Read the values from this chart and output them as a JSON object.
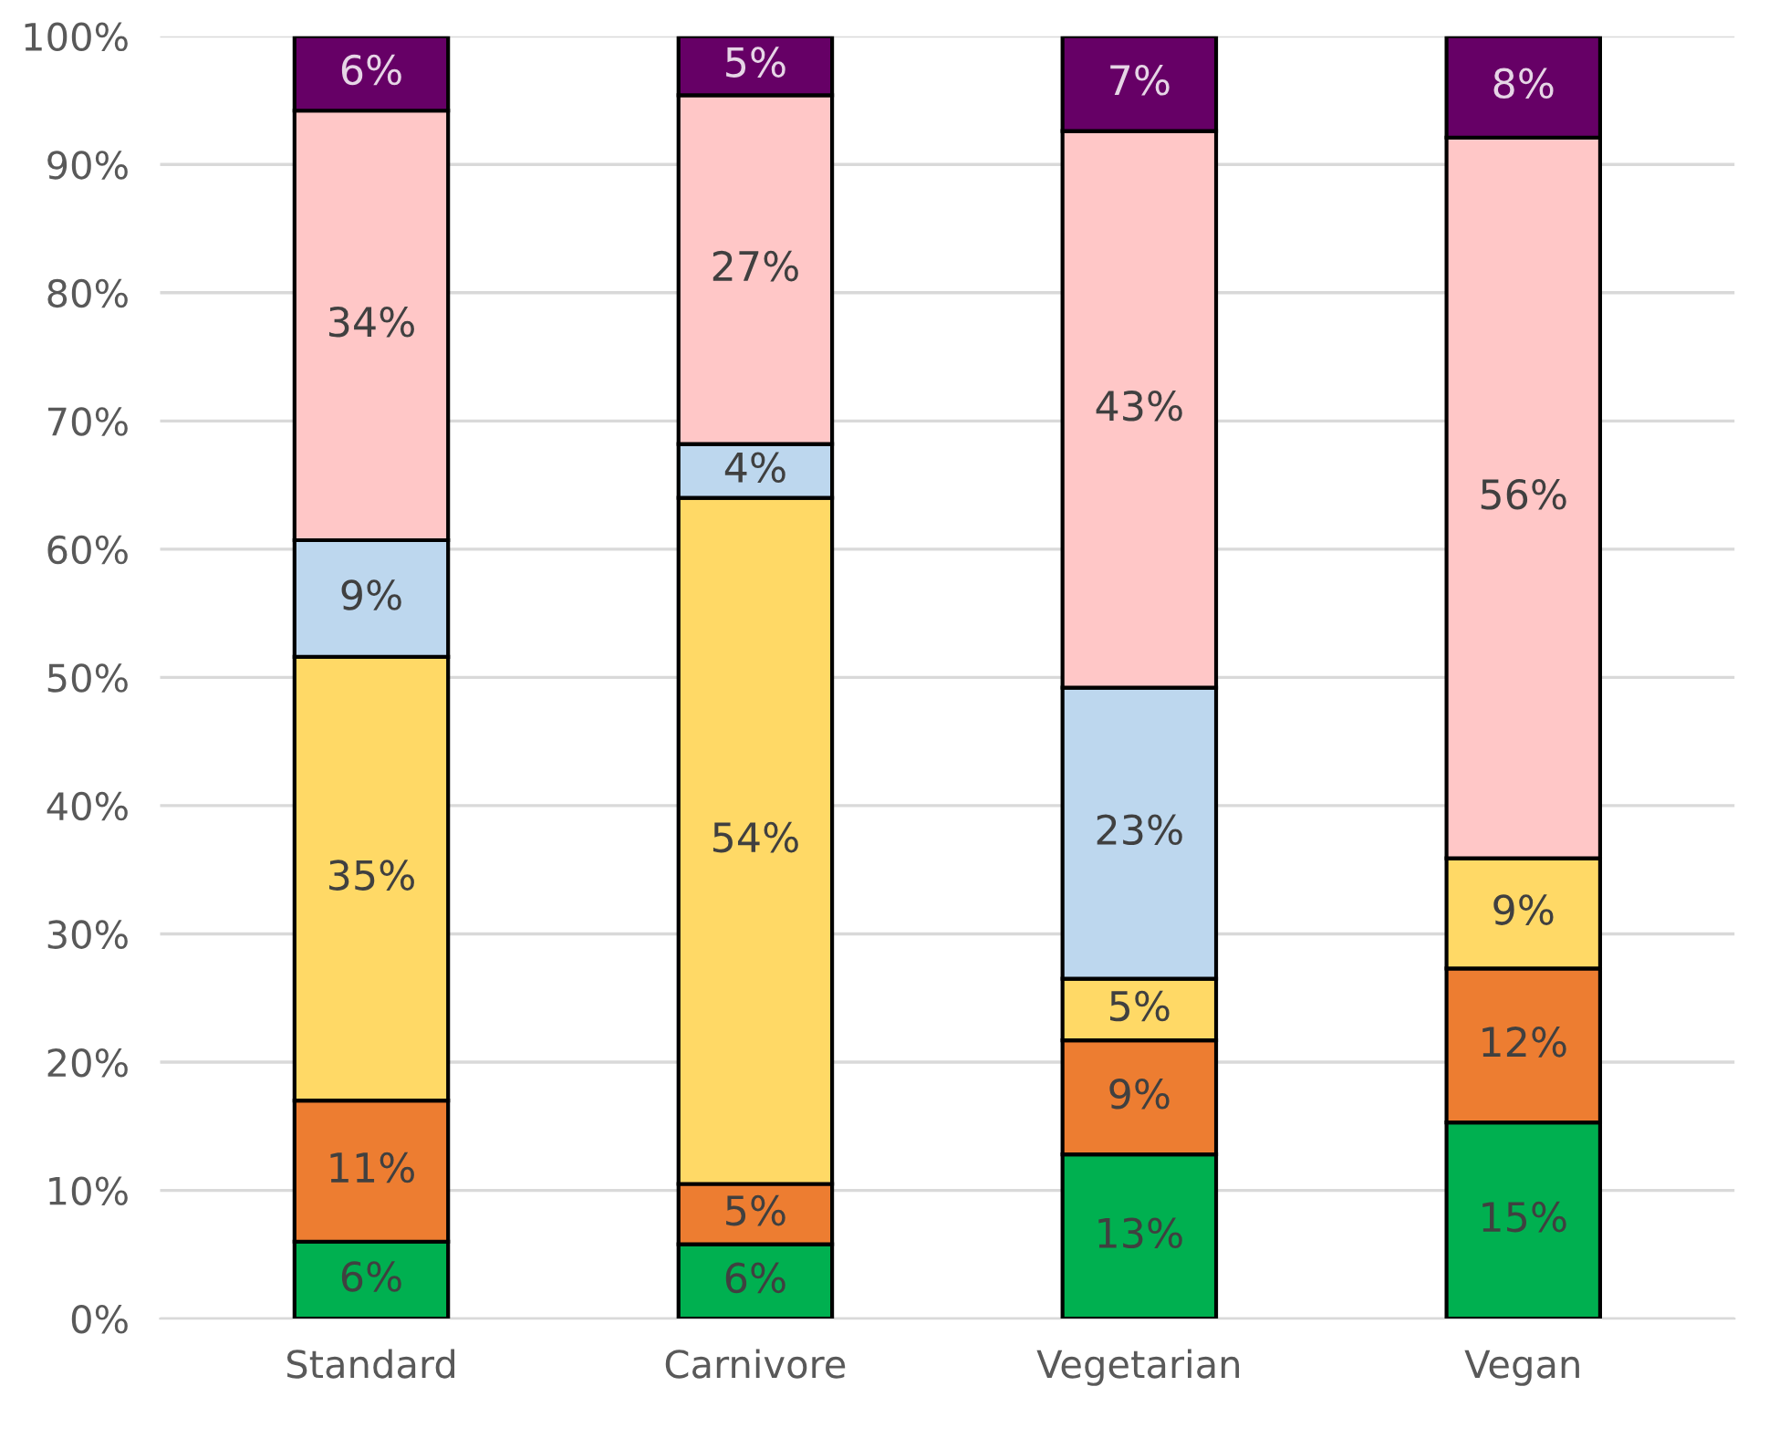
{
  "chart_data": {
    "type": "bar",
    "stacked": true,
    "categories": [
      "Standard",
      "Carnivore",
      "Vegetarian",
      "Vegan"
    ],
    "series": [
      {
        "color": "#00b050",
        "values": [
          6,
          5.8,
          12.8,
          15.3
        ],
        "value_labels": [
          "6%",
          "6%",
          "13%",
          "15%"
        ]
      },
      {
        "color": "#ed7d31",
        "values": [
          11,
          4.7,
          8.9,
          12
        ],
        "value_labels": [
          "11%",
          "5%",
          "9%",
          "12%"
        ]
      },
      {
        "color": "#ffd966",
        "values": [
          34.6,
          53.5,
          4.8,
          8.6
        ],
        "value_labels": [
          "35%",
          "54%",
          "5%",
          "9%"
        ]
      },
      {
        "color": "#bdd7ee",
        "values": [
          9.1,
          4.2,
          22.7,
          null
        ],
        "value_labels": [
          "9%",
          "4%",
          "23%",
          null
        ]
      },
      {
        "color": "#ffc7c7",
        "values": [
          33.5,
          27.2,
          43.4,
          56.2
        ],
        "value_labels": [
          "34%",
          "27%",
          "43%",
          "56%"
        ]
      },
      {
        "color": "#660066",
        "values": [
          5.8,
          4.6,
          7.4,
          7.9
        ],
        "value_labels": [
          "6%",
          "5%",
          "7%",
          "8%"
        ]
      }
    ],
    "ylim": [
      0,
      100
    ],
    "yticks": [
      {
        "value": 0,
        "label": "0%"
      },
      {
        "value": 10,
        "label": "10%"
      },
      {
        "value": 20,
        "label": "20%"
      },
      {
        "value": 30,
        "label": "30%"
      },
      {
        "value": 40,
        "label": "40%"
      },
      {
        "value": 50,
        "label": "50%"
      },
      {
        "value": 60,
        "label": "60%"
      },
      {
        "value": 70,
        "label": "70%"
      },
      {
        "value": 80,
        "label": "80%"
      },
      {
        "value": 90,
        "label": "90%"
      },
      {
        "value": 100,
        "label": "100%"
      }
    ],
    "grid": "y"
  }
}
